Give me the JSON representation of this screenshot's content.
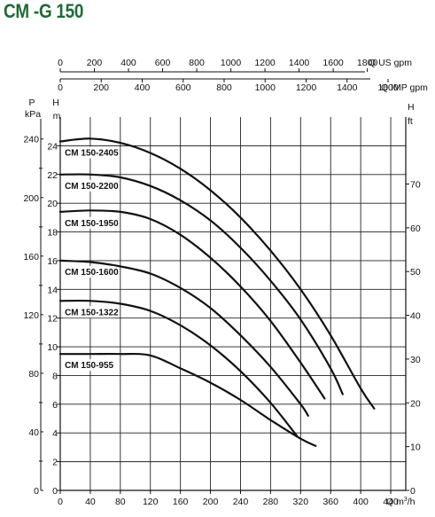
{
  "title": "CM -G 150",
  "chart_data": {
    "type": "line",
    "title": "CM -G 150",
    "grid": true,
    "x_axis": {
      "label": "Q m³/h",
      "label_main": "Q m",
      "label_sup": "3",
      "label_tail": "/h",
      "range": [
        0,
        460
      ],
      "ticks": [
        0,
        40,
        80,
        120,
        160,
        200,
        240,
        280,
        320,
        360,
        400,
        440
      ],
      "tick_labels": [
        "0",
        "40",
        "80",
        "120",
        "160",
        "200",
        "240",
        "280",
        "320",
        "360",
        "400",
        "440"
      ]
    },
    "x_axis_us": {
      "label": "Q US gpm",
      "ticks": [
        0,
        200,
        400,
        600,
        800,
        1000,
        1200,
        1400,
        1600,
        1800
      ],
      "tick_labels": [
        "0",
        "200",
        "400",
        "600",
        "800",
        "1000",
        "1200",
        "1400",
        "1600",
        "1800"
      ]
    },
    "x_axis_imp": {
      "label": "Q IMP gpm",
      "ticks": [
        0,
        200,
        400,
        600,
        800,
        1000,
        1200,
        1400,
        1600
      ],
      "tick_labels": [
        "0",
        "200",
        "400",
        "600",
        "800",
        "1000",
        "1200",
        "1400",
        "1600"
      ]
    },
    "y_axis_m": {
      "label": "H",
      "unit": "m",
      "range": [
        0,
        26
      ],
      "ticks": [
        0,
        2,
        4,
        6,
        8,
        10,
        12,
        14,
        16,
        18,
        20,
        22,
        24
      ],
      "tick_labels": [
        "0",
        "2",
        "4",
        "6",
        "8",
        "10",
        "12",
        "14",
        "16",
        "18",
        "20",
        "22",
        "24"
      ]
    },
    "y_axis_kpa": {
      "label": "P",
      "unit": "kPa",
      "ticks": [
        0,
        40,
        80,
        120,
        160,
        200,
        240
      ],
      "tick_labels": [
        "0",
        "40",
        "80",
        "120",
        "160",
        "200",
        "240"
      ]
    },
    "y_axis_ft": {
      "label": "H",
      "unit": "ft",
      "ticks": [
        0,
        10,
        20,
        30,
        40,
        50,
        60,
        70
      ],
      "tick_labels": [
        "0",
        "10",
        "20",
        "30",
        "40",
        "50",
        "60",
        "70"
      ]
    },
    "series": [
      {
        "name": "CM 150-2405",
        "points": [
          [
            0,
            24.3
          ],
          [
            40,
            24.5
          ],
          [
            80,
            24.2
          ],
          [
            120,
            23.5
          ],
          [
            160,
            22.4
          ],
          [
            200,
            20.9
          ],
          [
            240,
            19
          ],
          [
            280,
            16.7
          ],
          [
            320,
            14
          ],
          [
            360,
            10.8
          ],
          [
            400,
            7.1
          ],
          [
            418,
            5.7
          ]
        ]
      },
      {
        "name": "CM 150-2200",
        "points": [
          [
            0,
            22
          ],
          [
            40,
            22
          ],
          [
            80,
            21.8
          ],
          [
            120,
            21.2
          ],
          [
            160,
            20.2
          ],
          [
            200,
            18.8
          ],
          [
            240,
            16.9
          ],
          [
            280,
            14.6
          ],
          [
            320,
            11.9
          ],
          [
            360,
            8.5
          ],
          [
            376,
            6.7
          ]
        ]
      },
      {
        "name": "CM 150-1950",
        "points": [
          [
            0,
            19.4
          ],
          [
            40,
            19.5
          ],
          [
            80,
            19.4
          ],
          [
            120,
            18.9
          ],
          [
            160,
            17.8
          ],
          [
            200,
            16.2
          ],
          [
            240,
            14.2
          ],
          [
            280,
            11.8
          ],
          [
            320,
            8.9
          ],
          [
            352,
            6.4
          ]
        ]
      },
      {
        "name": "CM 150-1600",
        "points": [
          [
            0,
            16
          ],
          [
            40,
            15.9
          ],
          [
            80,
            15.6
          ],
          [
            120,
            15.1
          ],
          [
            160,
            14.1
          ],
          [
            200,
            12.7
          ],
          [
            240,
            10.8
          ],
          [
            280,
            8.6
          ],
          [
            320,
            6
          ],
          [
            330,
            5.2
          ]
        ]
      },
      {
        "name": "CM 150-1322",
        "points": [
          [
            0,
            13.2
          ],
          [
            40,
            13.2
          ],
          [
            80,
            13
          ],
          [
            120,
            12.5
          ],
          [
            160,
            11.5
          ],
          [
            200,
            10.1
          ],
          [
            240,
            8.3
          ],
          [
            280,
            6.1
          ],
          [
            315,
            3.8
          ]
        ]
      },
      {
        "name": "CM 150-955",
        "points": [
          [
            0,
            9.5
          ],
          [
            40,
            9.5
          ],
          [
            80,
            9.5
          ],
          [
            120,
            9.4
          ],
          [
            160,
            8.5
          ],
          [
            200,
            7.5
          ],
          [
            240,
            6.3
          ],
          [
            280,
            4.9
          ],
          [
            320,
            3.6
          ],
          [
            340,
            3.1
          ]
        ]
      }
    ]
  }
}
